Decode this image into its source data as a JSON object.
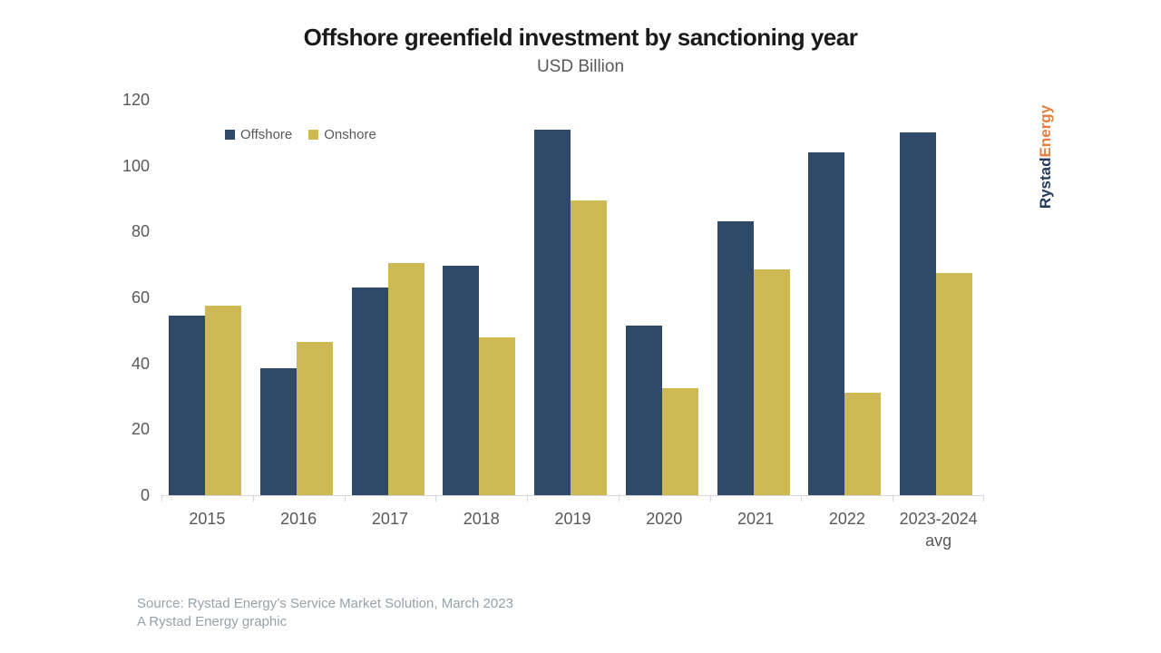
{
  "title": "Offshore greenfield investment by sanctioning year",
  "subtitle": "USD Billion",
  "legend": {
    "offshore_label": "Offshore",
    "onshore_label": "Onshore"
  },
  "source": {
    "line1": "Source: Rystad Energy’s Service Market Solution, March 2023",
    "line2": "A Rystad Energy graphic"
  },
  "logo": {
    "part1": "Rystad",
    "part2": "Energy",
    "part1_color": "#233a5c",
    "part2_color": "#e87e3d"
  },
  "colors": {
    "offshore": "#2e4a68",
    "onshore": "#cdba55",
    "axis_text": "#595959",
    "axis_line": "#d9d9d9",
    "source_text": "#98a1a9"
  },
  "chart_data": {
    "type": "bar",
    "title": "Offshore greenfield investment by sanctioning year",
    "subtitle": "USD Billion",
    "categories": [
      "2015",
      "2016",
      "2017",
      "2018",
      "2019",
      "2020",
      "2021",
      "2022",
      "2023-2024\navg"
    ],
    "series": [
      {
        "name": "Offshore",
        "color": "#2e4a68",
        "values": [
          54.5,
          38.5,
          63,
          69.5,
          111,
          51.5,
          83,
          104,
          110
        ]
      },
      {
        "name": "Onshore",
        "color": "#cdba55",
        "values": [
          57.5,
          46.5,
          70.5,
          48,
          89.5,
          32.5,
          68.5,
          31,
          67.5
        ]
      }
    ],
    "ylabel": "USD Billion",
    "ylim": [
      0,
      120
    ],
    "ytick_step": 20,
    "grid": false,
    "legend_position": "top-left"
  }
}
